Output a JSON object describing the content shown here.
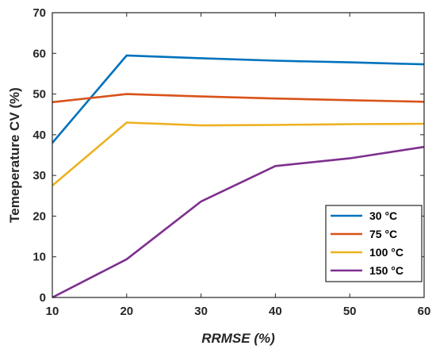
{
  "chart_data": {
    "type": "line",
    "title": "",
    "xlabel": "RRMSE (%)",
    "ylabel": "Temeperature CV (%)",
    "xlim": [
      10,
      60
    ],
    "ylim": [
      0,
      70
    ],
    "xticks": [
      10,
      20,
      30,
      40,
      50,
      60
    ],
    "yticks": [
      0,
      10,
      20,
      30,
      40,
      50,
      60,
      70
    ],
    "grid": false,
    "legend_position": "bottom-right",
    "series": [
      {
        "name": "30 °C",
        "color": "#0072BD",
        "x": [
          10,
          20,
          30,
          40,
          50,
          60
        ],
        "y": [
          38.0,
          59.5,
          58.8,
          58.2,
          57.8,
          57.3
        ]
      },
      {
        "name": "75 °C",
        "color": "#D95319",
        "x": [
          10,
          20,
          30,
          40,
          50,
          60
        ],
        "y": [
          48.0,
          50.0,
          49.4,
          48.9,
          48.5,
          48.1
        ]
      },
      {
        "name": "100 °C",
        "color": "#EDB120",
        "x": [
          10,
          20,
          30,
          40,
          50,
          60
        ],
        "y": [
          27.5,
          43.0,
          42.3,
          42.4,
          42.6,
          42.7
        ]
      },
      {
        "name": "150 °C",
        "color": "#7E2F8E",
        "x": [
          10,
          20,
          30,
          40,
          50,
          60
        ],
        "y": [
          0.0,
          9.4,
          23.6,
          32.3,
          34.2,
          37.0
        ]
      }
    ]
  }
}
